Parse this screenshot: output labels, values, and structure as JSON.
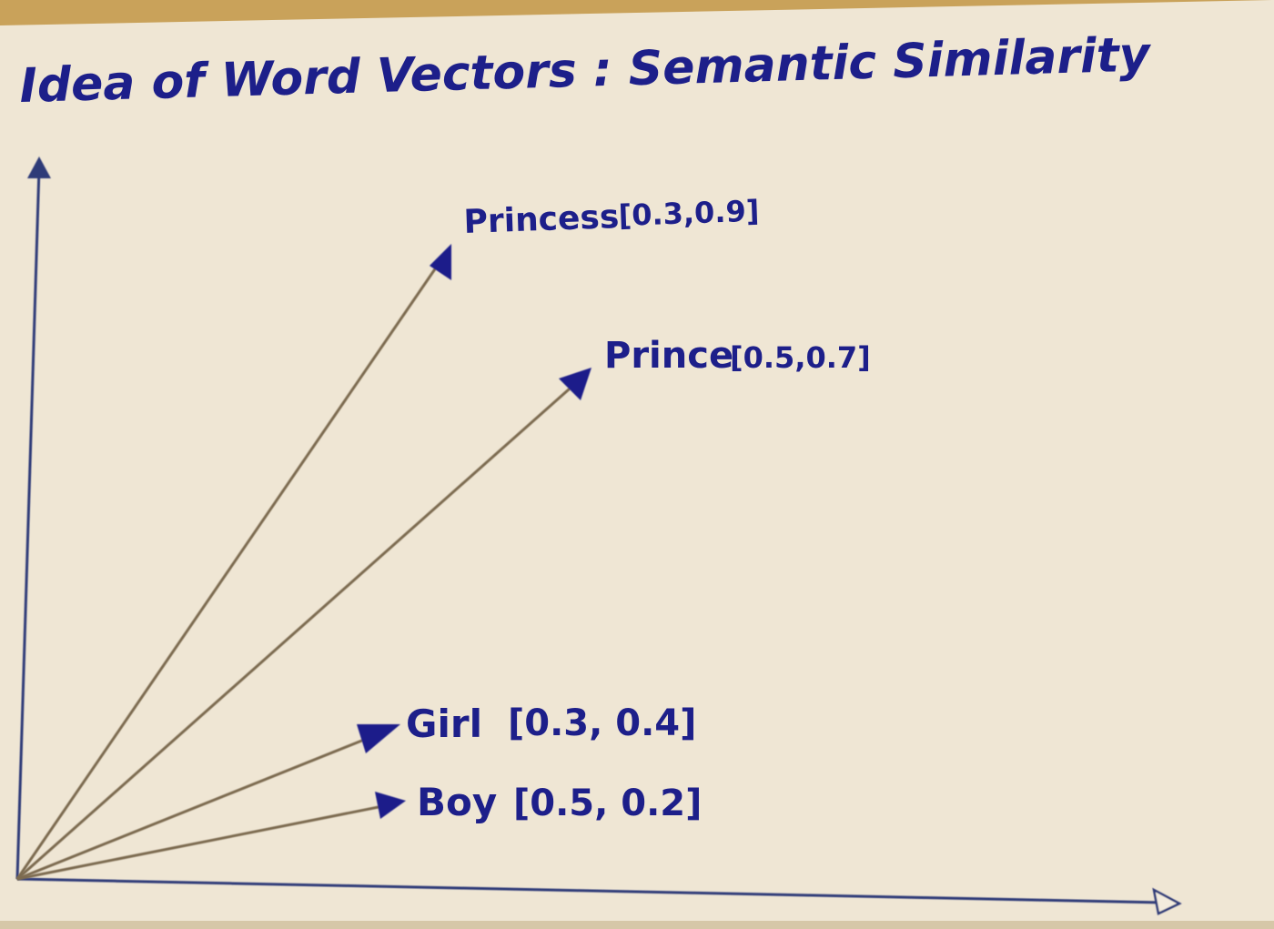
{
  "diagram": {
    "title": "Idea of Word Vectors : Semantic Similarity",
    "colors": {
      "paper": "#efe6d4",
      "ink": "#1d1f8a",
      "arrow_line": "#7c6a50",
      "arrow_head": "#1d1f8a",
      "axis": "#2f3a78"
    },
    "vectors": [
      {
        "word": "Princess",
        "vector_label": "[0.3,0.9]"
      },
      {
        "word": "Prince",
        "vector_label": "[0.5,0.7]"
      },
      {
        "word": "Girl",
        "vector_label": "[0.3, 0.4]"
      },
      {
        "word": "Boy",
        "vector_label": "[0.5, 0.2]"
      }
    ]
  }
}
